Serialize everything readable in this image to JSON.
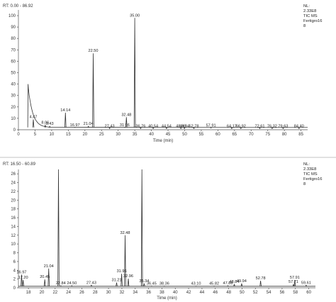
{
  "chart_data": [
    {
      "type": "line",
      "rt_label": "RT: 0.00 - 86.92",
      "info": [
        "NL:",
        "2.33E8",
        "TIC MS",
        "Fertigro16",
        "8"
      ],
      "xlabel": "Time (min)",
      "ylabel": "",
      "xlim": [
        0,
        87
      ],
      "ylim": [
        0,
        105
      ],
      "x_ticks": [
        "0",
        "5",
        "10",
        "15",
        "20",
        "25",
        "30",
        "35",
        "40",
        "45",
        "50",
        "55",
        "60",
        "65",
        "70",
        "75",
        "80",
        "85"
      ],
      "y_ticks": [
        "0",
        "10",
        "20",
        "30",
        "40",
        "50",
        "60",
        "70",
        "80",
        "90",
        "100"
      ],
      "peaks": [
        {
          "x": 4.47,
          "y": 9,
          "label": "4.47"
        },
        {
          "x": 8.06,
          "y": 4,
          "label": "8.06"
        },
        {
          "x": 9.43,
          "y": 3,
          "label": "9.43"
        },
        {
          "x": 14.14,
          "y": 15,
          "label": "14.14"
        },
        {
          "x": 16.97,
          "y": 2,
          "label": "16.97"
        },
        {
          "x": 21.04,
          "y": 3,
          "label": "21.04"
        },
        {
          "x": 22.5,
          "y": 67,
          "label": "22.50"
        },
        {
          "x": 27.43,
          "y": 1,
          "label": "27.43"
        },
        {
          "x": 31.96,
          "y": 2,
          "label": "31.96"
        },
        {
          "x": 32.48,
          "y": 11,
          "label": "32.48"
        },
        {
          "x": 35.0,
          "y": 98,
          "label": "35.00"
        },
        {
          "x": 36.76,
          "y": 1,
          "label": "36.76"
        },
        {
          "x": 40.54,
          "y": 1,
          "label": "40.54"
        },
        {
          "x": 44.54,
          "y": 1,
          "label": "44.54"
        },
        {
          "x": 48.88,
          "y": 1,
          "label": "48.88"
        },
        {
          "x": 49.94,
          "y": 1,
          "label": "49.94"
        },
        {
          "x": 52.78,
          "y": 1,
          "label": "52.78"
        },
        {
          "x": 57.91,
          "y": 1.5,
          "label": "57.91"
        },
        {
          "x": 64.17,
          "y": 1,
          "label": "64.17"
        },
        {
          "x": 66.92,
          "y": 1,
          "label": "66.92"
        },
        {
          "x": 72.61,
          "y": 1,
          "label": "72.61"
        },
        {
          "x": 76.32,
          "y": 1,
          "label": "76.32"
        },
        {
          "x": 79.63,
          "y": 1,
          "label": "79.63"
        },
        {
          "x": 84.4,
          "y": 1,
          "label": "84.40"
        }
      ],
      "grid": false,
      "legend": "top-right"
    },
    {
      "type": "line",
      "rt_label": "RT: 16.50 - 60.89",
      "info": [
        "NL:",
        "2.33E8",
        "TIC MS",
        "Fertigro16",
        "8"
      ],
      "xlabel": "Time (min)",
      "ylabel": "",
      "xlim": [
        16.5,
        61
      ],
      "ylim": [
        0,
        27
      ],
      "x_ticks": [
        "18",
        "20",
        "22",
        "24",
        "26",
        "28",
        "30",
        "32",
        "34",
        "36",
        "38",
        "40",
        "42",
        "44",
        "46",
        "48",
        "50",
        "52",
        "54",
        "56",
        "58",
        "60"
      ],
      "y_ticks": [
        "0",
        "2",
        "4",
        "6",
        "8",
        "10",
        "12",
        "14",
        "16",
        "18",
        "20",
        "22",
        "24",
        "26"
      ],
      "peaks": [
        {
          "x": 16.97,
          "y": 3.0,
          "label": "16.97"
        },
        {
          "x": 17.2,
          "y": 1.8,
          "label": "17.20"
        },
        {
          "x": 20.45,
          "y": 1.9,
          "label": "20.45"
        },
        {
          "x": 21.04,
          "y": 4.4,
          "label": "21.04"
        },
        {
          "x": 22.5,
          "y": 27,
          "label": ""
        },
        {
          "x": 22.84,
          "y": 0.5,
          "label": "22.84"
        },
        {
          "x": 24.5,
          "y": 0.5,
          "label": "24.50"
        },
        {
          "x": 27.43,
          "y": 0.6,
          "label": "27.43"
        },
        {
          "x": 31.21,
          "y": 1.2,
          "label": "31.21"
        },
        {
          "x": 31.96,
          "y": 3.2,
          "label": "31.96"
        },
        {
          "x": 32.48,
          "y": 12.0,
          "label": "32.48"
        },
        {
          "x": 32.96,
          "y": 2.1,
          "label": "32.96"
        },
        {
          "x": 35.0,
          "y": 27,
          "label": ""
        },
        {
          "x": 35.34,
          "y": 1.0,
          "label": "35.34"
        },
        {
          "x": 36.45,
          "y": 0.4,
          "label": "36.45"
        },
        {
          "x": 38.36,
          "y": 0.4,
          "label": "38.36"
        },
        {
          "x": 43.1,
          "y": 0.4,
          "label": "43.10"
        },
        {
          "x": 45.82,
          "y": 0.4,
          "label": "45.82"
        },
        {
          "x": 47.88,
          "y": 0.5,
          "label": "47.88"
        },
        {
          "x": 48.84,
          "y": 0.8,
          "label": "48.84"
        },
        {
          "x": 49.94,
          "y": 1.0,
          "label": "49.94"
        },
        {
          "x": 52.78,
          "y": 1.6,
          "label": "52.78"
        },
        {
          "x": 57.71,
          "y": 0.8,
          "label": "57.71"
        },
        {
          "x": 57.91,
          "y": 1.8,
          "label": "57.91"
        },
        {
          "x": 59.61,
          "y": 0.6,
          "label": "59.61"
        }
      ],
      "grid": false,
      "legend": "top-right"
    }
  ]
}
